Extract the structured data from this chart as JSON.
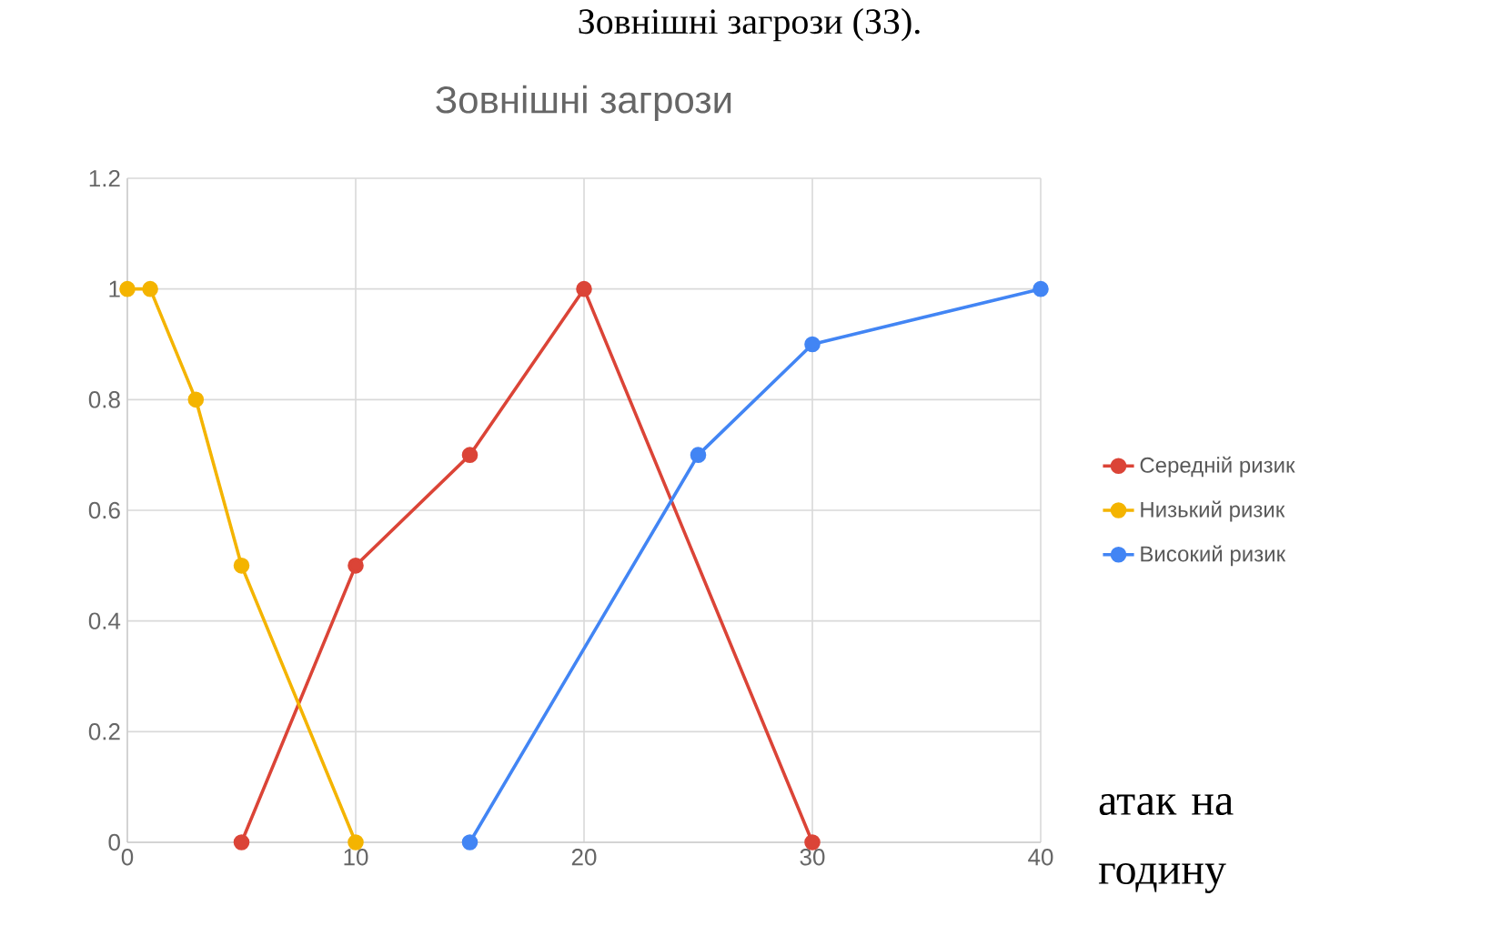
{
  "chart_data": {
    "type": "line",
    "title": "Зовнішні загрози",
    "xlabel": "атак на годину",
    "annotations": [
      "Зовнішні загрози (ЗЗ)."
    ],
    "series": [
      {
        "name": "Середній ризик",
        "color": "#db4437",
        "x": [
          5,
          10,
          15,
          20,
          30
        ],
        "values": [
          0,
          0.5,
          0.7,
          1,
          0
        ]
      },
      {
        "name": "Низький ризик",
        "color": "#f4b400",
        "x": [
          0,
          1,
          3,
          5,
          10
        ],
        "values": [
          1,
          1,
          0.8,
          0.5,
          0
        ]
      },
      {
        "name": "Високий ризик",
        "color": "#4285f4",
        "x": [
          15,
          25,
          30,
          40
        ],
        "values": [
          0,
          0.7,
          0.9,
          1
        ]
      }
    ],
    "xlim": [
      0,
      40
    ],
    "ylim": [
      0,
      1.2
    ],
    "xticks": [
      0,
      10,
      20,
      30,
      40
    ],
    "yticks": [
      0,
      0.2,
      0.4,
      0.6,
      0.8,
      1,
      1.2
    ],
    "grid": true,
    "legend": "right",
    "marker": "circle",
    "line_style": "solid"
  }
}
